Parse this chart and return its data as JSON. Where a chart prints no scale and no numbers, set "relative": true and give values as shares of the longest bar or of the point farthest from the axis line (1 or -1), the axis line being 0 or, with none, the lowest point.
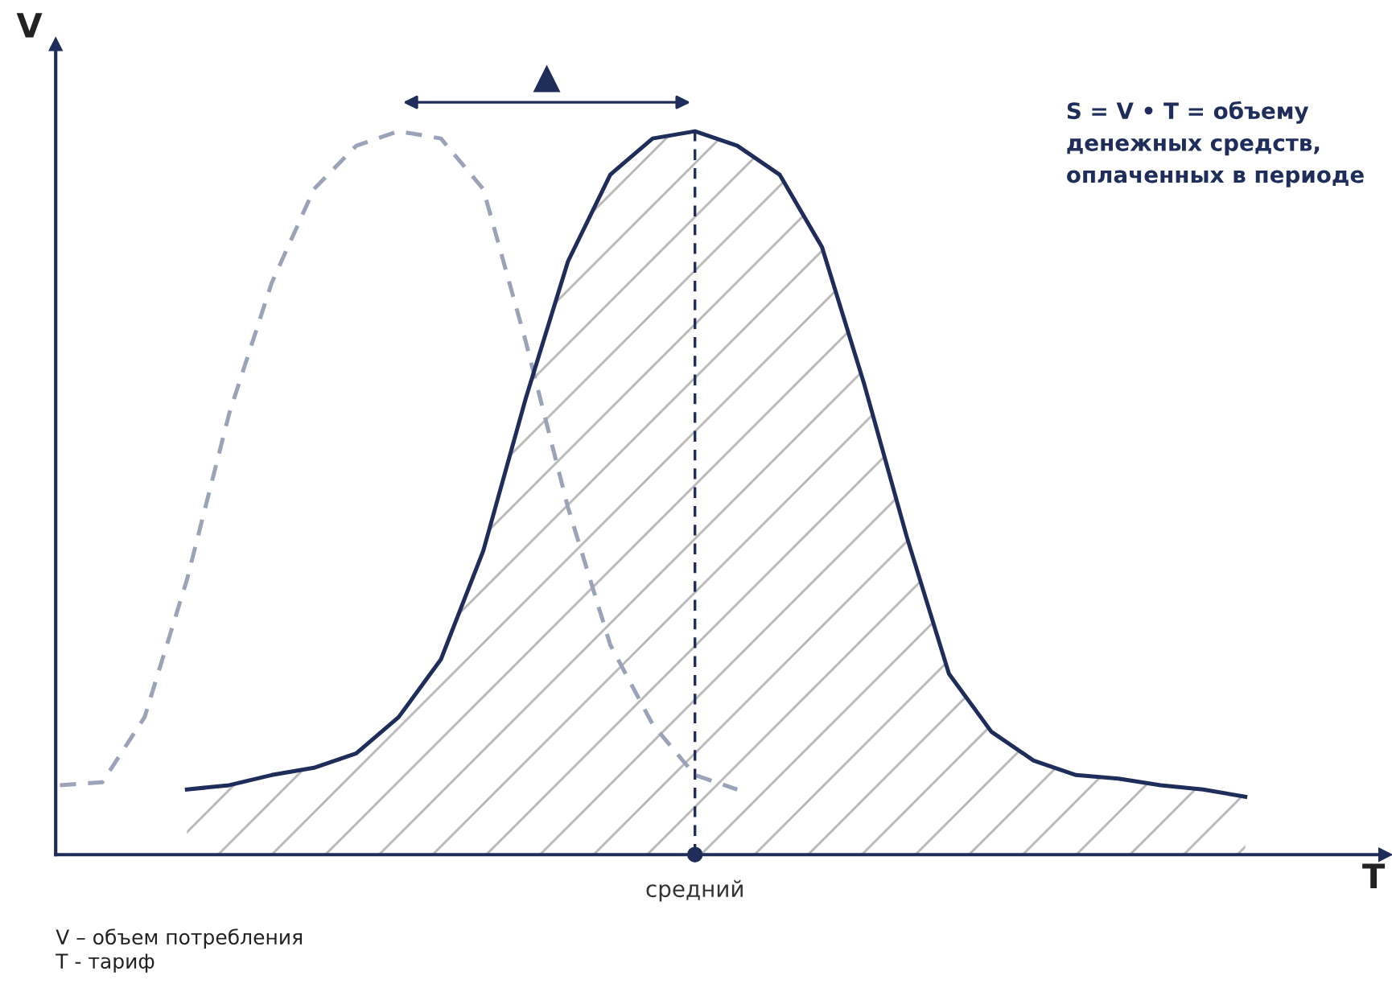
{
  "chart_data": {
    "type": "line",
    "relative": true,
    "xlabel": "T",
    "ylabel": "V",
    "categories": [
      null,
      null,
      null,
      null,
      null,
      null,
      null,
      null,
      null,
      null,
      null,
      null,
      null,
      null,
      null,
      null,
      null,
      null,
      null,
      null,
      null,
      null,
      null,
      null,
      null,
      null,
      null,
      null,
      null
    ],
    "series": [
      {
        "type": "line",
        "line_style": "dashed",
        "color": "#9aa3b8",
        "values": [
          0.096,
          0.1,
          0.19,
          0.38,
          0.61,
          0.79,
          0.92,
          0.98,
          1.0,
          0.99,
          0.92,
          0.71,
          0.48,
          0.29,
          0.18,
          0.11,
          0.09,
          null,
          null,
          null,
          null,
          null,
          null,
          null,
          null,
          null,
          null,
          null,
          null
        ]
      },
      {
        "type": "area",
        "line_style": "solid",
        "color": "#1f2d5a",
        "values": [
          null,
          null,
          null,
          0.09,
          0.096,
          0.11,
          0.12,
          0.14,
          0.19,
          0.27,
          0.42,
          0.63,
          0.82,
          0.94,
          0.99,
          1.0,
          0.98,
          0.94,
          0.84,
          0.65,
          0.44,
          0.25,
          0.17,
          0.13,
          0.11,
          0.105,
          0.096,
          0.09,
          0.08
        ]
      }
    ],
    "annotations": [
      "▲",
      "S = V • T = объему денежных средств, оплаченных в периоде",
      "V – объем потребления\nT - тариф",
      "средний"
    ],
    "legend": false,
    "marker": "none"
  }
}
